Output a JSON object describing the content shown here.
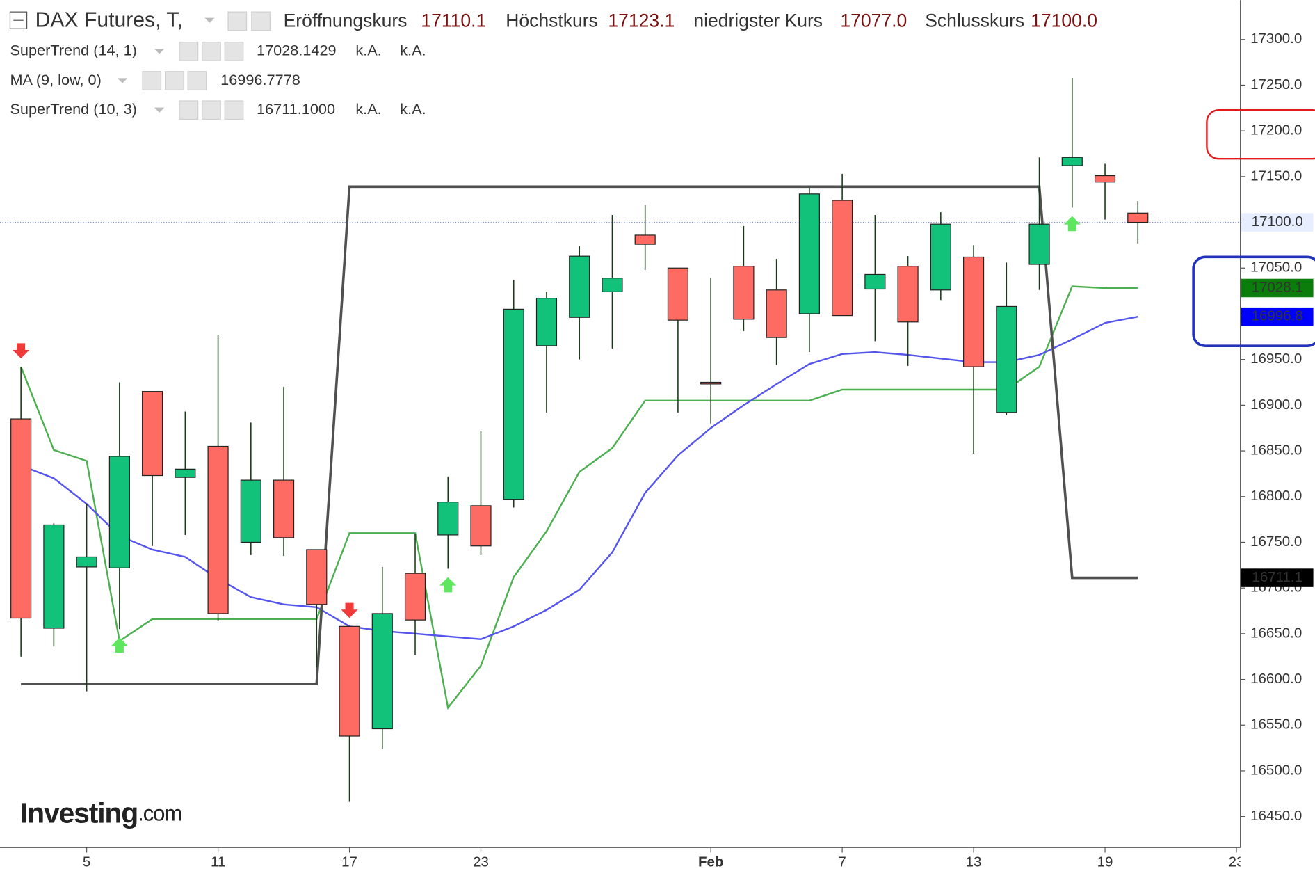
{
  "chart_data": {
    "type": "candlestick",
    "title": "DAX Futures, T,",
    "header": [
      {
        "name": "Eröffnungskurs",
        "label": "17110.1"
      },
      {
        "name": "Höchstkurs",
        "label": "17123.1"
      },
      {
        "name": "niedrigster Kurs",
        "label": "17077.0"
      },
      {
        "name": "Schlusskurs",
        "label": "17100.0"
      }
    ],
    "categories": [
      null,
      null,
      "5",
      null,
      null,
      null,
      "11",
      null,
      null,
      null,
      "17",
      null,
      null,
      null,
      "23",
      null,
      null,
      null,
      null,
      null,
      null,
      "Feb",
      null,
      null,
      null,
      "7",
      null,
      null,
      null,
      "13",
      null,
      null,
      null,
      "19",
      null,
      null,
      null,
      "23"
    ],
    "open": [
      16885,
      16656,
      16723,
      16722,
      16915,
      16821,
      16855,
      16750,
      16818,
      16742,
      16658,
      16546,
      16716,
      16758,
      16790,
      16797,
      16965,
      16996,
      17024,
      17086,
      17050,
      16925,
      17052,
      17026,
      17000,
      17124,
      17027,
      17052,
      17026,
      17062,
      16892,
      17054,
      17162,
      17151,
      17110.1,
      null,
      null,
      null
    ],
    "high": [
      16942,
      16771,
      16792,
      16925,
      16915,
      16893,
      16977,
      16881,
      16920,
      16742,
      16658,
      16723,
      16759,
      16822,
      16872,
      17037,
      17024,
      17074,
      17108,
      17119,
      17050,
      17039,
      17096,
      17060,
      17138,
      17153,
      17108,
      17063,
      17111,
      17075,
      17056,
      17171,
      17258,
      17164,
      17123.1,
      null,
      null,
      null
    ],
    "low": [
      16625,
      16636,
      16587,
      16655,
      16746,
      16758,
      16664,
      16736,
      16735,
      16613,
      16466,
      16524,
      16627,
      16721,
      16736,
      16788,
      16892,
      16950,
      16962,
      17048,
      16892,
      16880,
      16981,
      16944,
      16958,
      16998,
      16970,
      16943,
      17015,
      16847,
      16889,
      17026,
      17116,
      17103,
      17077,
      null,
      null,
      null
    ],
    "close": [
      16667,
      16769,
      16734,
      16844,
      16823,
      16830,
      16672,
      16818,
      16755,
      16682,
      16538,
      16672,
      16665,
      16794,
      16746,
      17005,
      17017,
      17063,
      17039,
      17076,
      16993,
      16924,
      16994,
      16974,
      17131,
      16998,
      17043,
      16991,
      17098,
      16942,
      17008,
      17098,
      17171,
      17144,
      17100,
      null,
      null,
      null
    ],
    "up_color": "#13c27a",
    "down_color": "#fd6b62",
    "last_price_flag": "17100.0",
    "series": [
      {
        "name": "SuperTrend (14, 1)",
        "color": "#4caf50",
        "width": 2,
        "values": [
          16942,
          16851,
          16839,
          16642,
          16666,
          16666,
          16666,
          16666,
          16666,
          16666,
          16760,
          16760,
          16760,
          16569,
          16615,
          16712,
          16762,
          16827,
          16853,
          16905,
          16905,
          16905,
          16905,
          16905,
          16905,
          16917,
          16917,
          16917,
          16917,
          16917,
          16917,
          16942,
          17030,
          17028.1,
          17028.1429,
          null,
          null,
          null
        ],
        "params": [
          "k.A.",
          "k.A."
        ],
        "last_label": "17028.1429",
        "flag": "17028.1",
        "flag_color": "#0a7d0a",
        "label_color": "#0a7d0a"
      },
      {
        "name": "MA (9, low, 0)",
        "color": "#5555ee",
        "width": 2,
        "values": [
          16834,
          16820,
          16792,
          16757,
          16742,
          16734,
          16710,
          16690,
          16682,
          16679,
          16658,
          16653,
          16650,
          16647,
          16644,
          16658,
          16676,
          16698,
          16739,
          16804,
          16845,
          16875,
          16900,
          16923,
          16945,
          16956,
          16958,
          16955,
          16951,
          16947,
          16947,
          16955,
          16972,
          16990,
          16996.7778,
          null,
          null,
          null
        ],
        "last_label": "16996.7778",
        "flag": "16996.8",
        "flag_color": "#0000ff",
        "label_color": "#0000ff"
      },
      {
        "name": "SuperTrend (10, 3)",
        "color": "#505050",
        "width": 3,
        "values": [
          16595,
          16595,
          16595,
          16595,
          16595,
          16595,
          16595,
          16595,
          16595,
          16595,
          17139,
          17139,
          17139,
          17139,
          17139,
          17139,
          17139,
          17139,
          17139,
          17139,
          17139,
          17139,
          17139,
          17139,
          17139,
          17139,
          17139,
          17139,
          17139,
          17139,
          17139,
          17139,
          16711.1,
          16711.1,
          16711.1,
          null,
          null,
          null
        ],
        "params": [
          "k.A.",
          "k.A."
        ],
        "last_label": "16711.1000",
        "flag": "16711.1",
        "flag_color": "#000000",
        "label_color": "#000000"
      }
    ],
    "signals": {
      "down": [
        0,
        10
      ],
      "up": [
        3,
        13,
        32
      ]
    },
    "ylim": [
      16416,
      17343
    ],
    "yticks": [
      {
        "value": 17300,
        "label": "17300.0"
      },
      {
        "value": 17250,
        "label": "17250.0"
      },
      {
        "value": 17200,
        "label": "17200.0"
      },
      {
        "value": 17150,
        "label": "17150.0"
      },
      {
        "value": 17100,
        "label": "17100.0"
      },
      {
        "value": 17050,
        "label": "17050.0"
      },
      {
        "value": 17000,
        "label": "17000.0"
      },
      {
        "value": 16950,
        "label": "16950.0"
      },
      {
        "value": 16900,
        "label": "16900.0"
      },
      {
        "value": 16850,
        "label": "16850.0"
      },
      {
        "value": 16800,
        "label": "16800.0"
      },
      {
        "value": 16750,
        "label": "16750.0"
      },
      {
        "value": 16700,
        "label": "16700.0"
      },
      {
        "value": 16650,
        "label": "16650.0"
      },
      {
        "value": 16600,
        "label": "16600.0"
      },
      {
        "value": 16550,
        "label": "16550.0"
      },
      {
        "value": 16500,
        "label": "16500.0"
      },
      {
        "value": 16450,
        "label": "16450.0"
      }
    ],
    "logo": {
      "brand": "Investing",
      "suffix": ".com"
    }
  }
}
